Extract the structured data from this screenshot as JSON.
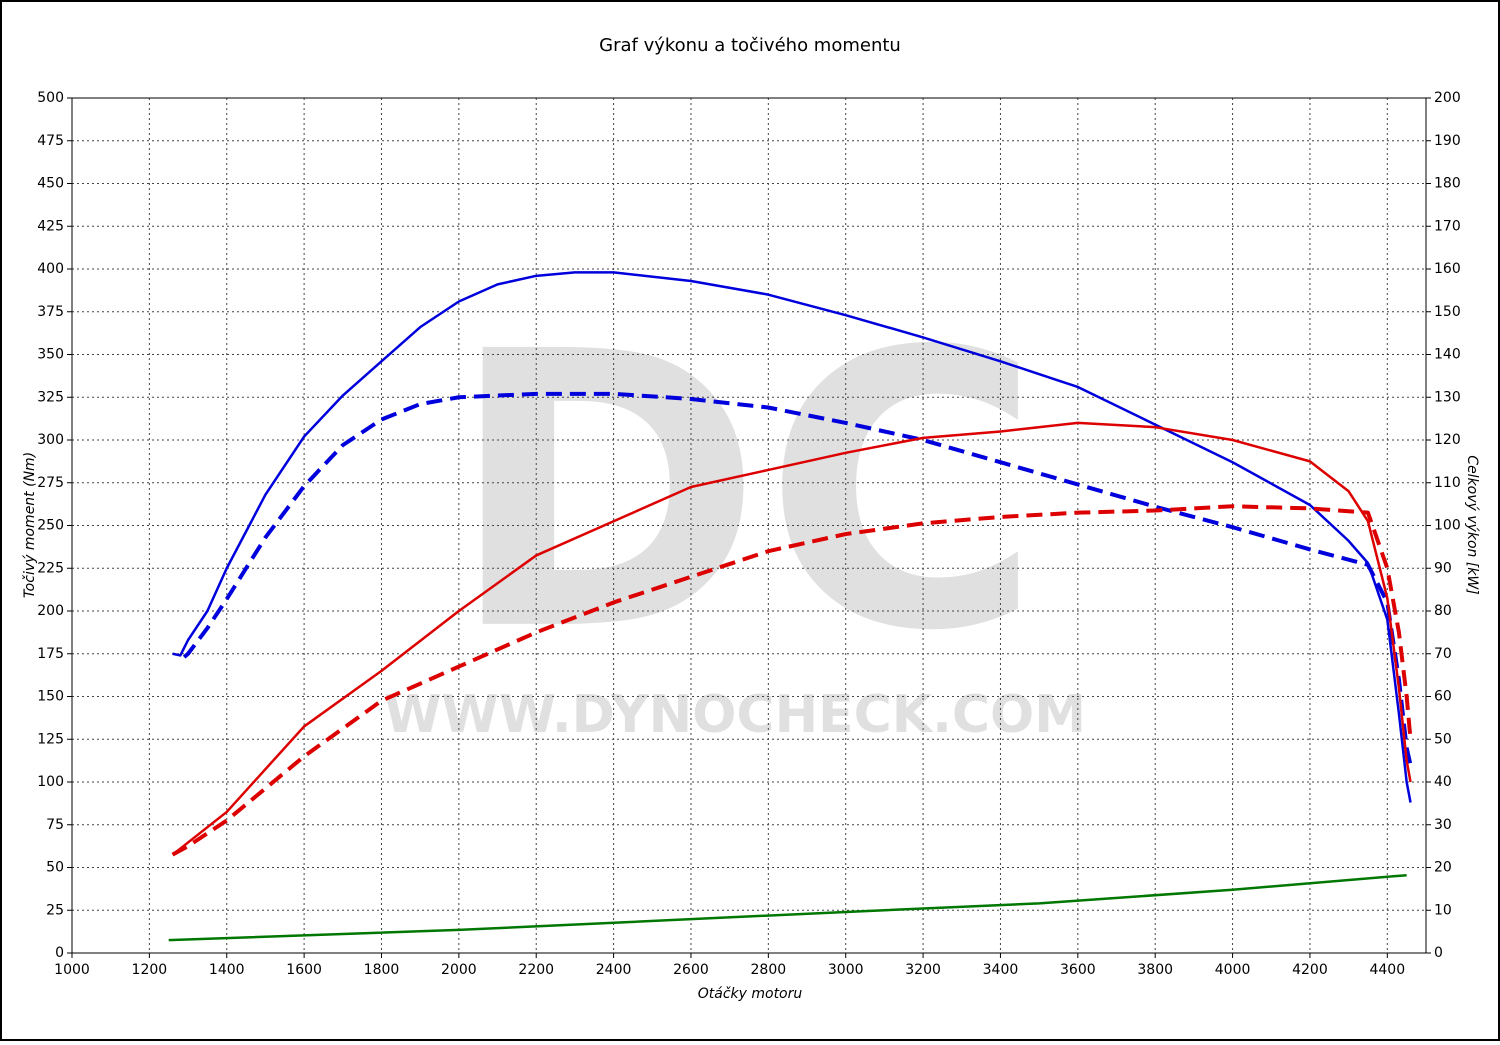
{
  "chart_data": {
    "type": "line",
    "title": "Graf výkonu a točivého momentu",
    "x_label": "Otáčky motoru",
    "y_label": "Točivý moment (Nm)",
    "y2_label": "Celkový výkon [kW]",
    "watermark_logo": "DC",
    "watermark_url": "WWW.DYNOCHECK.COM",
    "xlim": [
      1000,
      4500
    ],
    "xticks": [
      1000,
      1200,
      1400,
      1600,
      1800,
      2000,
      2200,
      2400,
      2600,
      2800,
      3000,
      3200,
      3400,
      3600,
      3800,
      4000,
      4200,
      4400
    ],
    "ylim": [
      0,
      500
    ],
    "yticks": [
      0,
      25,
      50,
      75,
      100,
      125,
      150,
      175,
      200,
      225,
      250,
      275,
      300,
      325,
      350,
      375,
      400,
      425,
      450,
      475,
      500
    ],
    "y2lim": [
      0,
      200
    ],
    "y2ticks": [
      0,
      10,
      20,
      30,
      40,
      50,
      60,
      70,
      80,
      90,
      100,
      110,
      120,
      130,
      140,
      150,
      160,
      170,
      180,
      190,
      200
    ],
    "grid": true,
    "series": [
      {
        "color": "#0000dd",
        "dash": false,
        "x": [
          1260,
          1280,
          1300,
          1350,
          1400,
          1500,
          1600,
          1700,
          1800,
          1900,
          2000,
          2100,
          2200,
          2300,
          2400,
          2600,
          2800,
          3000,
          3200,
          3400,
          3600,
          3800,
          4000,
          4200,
          4300,
          4350,
          4400,
          4430,
          4450,
          4460
        ],
        "values": [
          175,
          174,
          183,
          200,
          225,
          268,
          302,
          326,
          346,
          366,
          381,
          391,
          396,
          398,
          398,
          393,
          385,
          373,
          360,
          346,
          331,
          309,
          287,
          262,
          241,
          228,
          195,
          140,
          100,
          88
        ]
      },
      {
        "color": "#0000dd",
        "dash": true,
        "x": [
          1290,
          1300,
          1350,
          1400,
          1500,
          1600,
          1700,
          1800,
          1900,
          2000,
          2200,
          2400,
          2600,
          2800,
          3000,
          3200,
          3400,
          3600,
          3800,
          4000,
          4200,
          4350,
          4400,
          4430,
          4450,
          4460
        ],
        "values": [
          173,
          175,
          190,
          207,
          243,
          273,
          297,
          312,
          321,
          325,
          327,
          327,
          324,
          319,
          310,
          300,
          287,
          274,
          261,
          249,
          236,
          227,
          205,
          160,
          120,
          110
        ]
      },
      {
        "color": "#dd0000",
        "dash": false,
        "axis": "y2",
        "x": [
          1260,
          1400,
          1600,
          1800,
          2000,
          2200,
          2400,
          2600,
          2800,
          3000,
          3200,
          3400,
          3600,
          3800,
          4000,
          4200,
          4300,
          4350,
          4400,
          4430,
          4450,
          4460
        ],
        "values": [
          23,
          33,
          53,
          66,
          80,
          93,
          101,
          109,
          113,
          117,
          120.5,
          122,
          124,
          123,
          120,
          115,
          108,
          101,
          83,
          62,
          45,
          40
        ]
      },
      {
        "color": "#dd0000",
        "dash": true,
        "axis": "y2",
        "x": [
          1260,
          1300,
          1400,
          1600,
          1800,
          2000,
          2200,
          2400,
          2600,
          2800,
          3000,
          3200,
          3400,
          3600,
          3800,
          4000,
          4200,
          4350,
          4400,
          4430,
          4450,
          4460
        ],
        "values": [
          23,
          25,
          31,
          46,
          59,
          67,
          75,
          82,
          88,
          94,
          98,
          100.5,
          102,
          103,
          103.5,
          104.5,
          104,
          103,
          90,
          75,
          60,
          50
        ]
      },
      {
        "color": "#007700",
        "dash": false,
        "x": [
          1250,
          2000,
          3000,
          3500,
          4000,
          4450
        ],
        "values": [
          7.5,
          13.5,
          24,
          29,
          37,
          45.5
        ]
      }
    ]
  }
}
